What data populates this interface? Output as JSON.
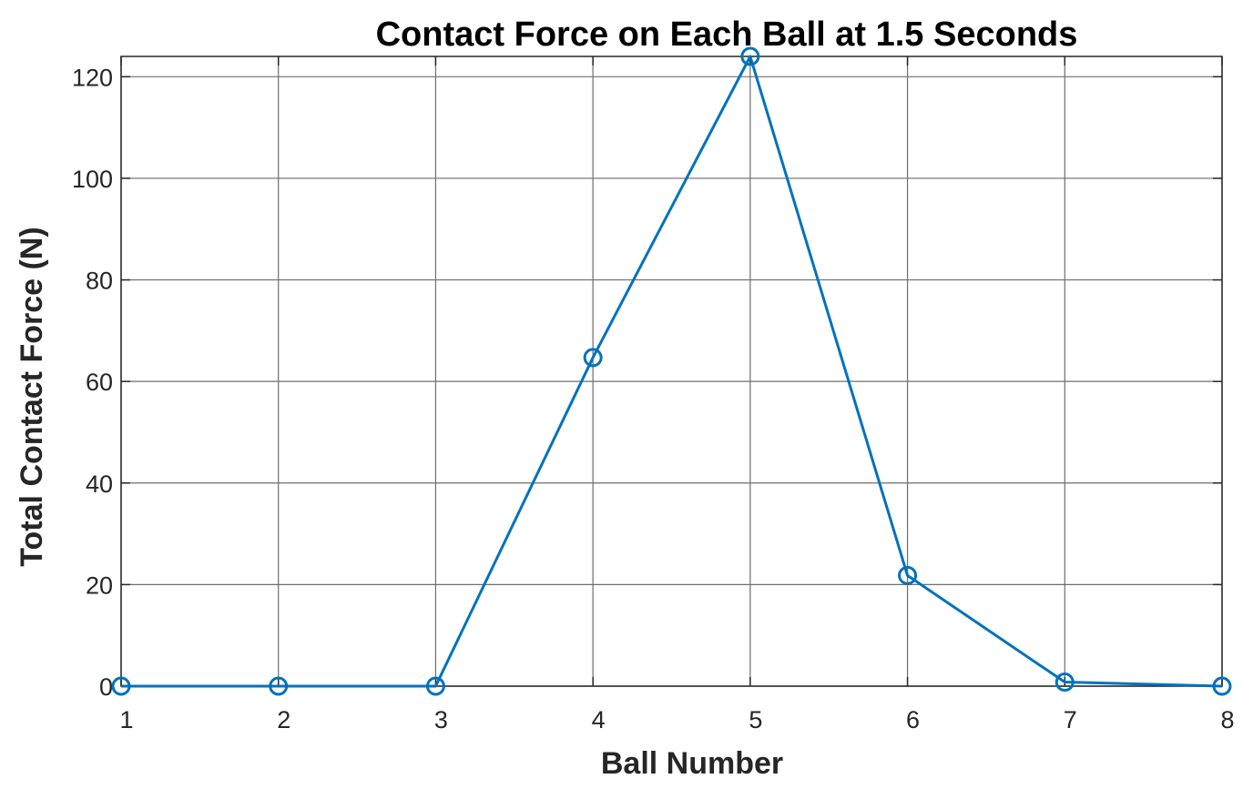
{
  "chart_data": {
    "type": "line",
    "title": "Contact Force on Each Ball at 1.5 Seconds",
    "xlabel": "Ball Number",
    "ylabel": "Total Contact Force (N)",
    "x": [
      1,
      2,
      3,
      4,
      5,
      6,
      7,
      8
    ],
    "series": [
      {
        "values": [
          0,
          0,
          0,
          64.7,
          124,
          21.8,
          0.8,
          0
        ],
        "color": "#0072BD",
        "marker": "circle"
      }
    ],
    "xlim": [
      1,
      8
    ],
    "ylim": [
      0,
      124
    ],
    "xticks": [
      1,
      2,
      3,
      4,
      5,
      6,
      7,
      8
    ],
    "yticks": [
      0,
      20,
      40,
      60,
      80,
      100,
      120
    ],
    "grid": true
  }
}
